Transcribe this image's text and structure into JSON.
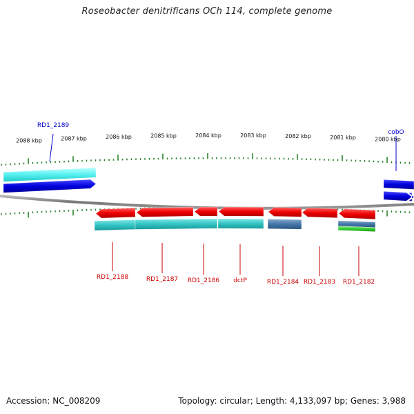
{
  "title": "Roseobacter denitrificans OCh 114, complete genome",
  "footer": {
    "accession": "Accession: NC_008209",
    "topology": "Topology: circular; Length: 4,133,097 bp; Genes: 3,988"
  },
  "colors": {
    "forward_gene": "#0000dd",
    "reverse_gene": "#ee0000",
    "forward_label": "#0000cc",
    "reverse_label": "#cc0000",
    "cds_cyan": "#33cccc",
    "cds_light_cyan": "#66ffff",
    "cds_steel": "#4477aa",
    "cds_green": "#33cc33",
    "tick": "#1a7a1a",
    "backbone": "#777777"
  },
  "scale_labels": [
    "2088 kbp",
    "2087 kbp",
    "2086 kbp",
    "2085 kbp",
    "2084 kbp",
    "2083 kbp",
    "2082 kbp",
    "2081 kbp",
    "2080 kbp"
  ],
  "genes_forward": [
    {
      "label": "RD1_2189"
    },
    {
      "label": "cobO"
    }
  ],
  "genes_reverse": [
    {
      "label": "RD1_2188"
    },
    {
      "label": "RD1_2187"
    },
    {
      "label": "RD1_2186"
    },
    {
      "label": "dctP"
    },
    {
      "label": "RD1_2184"
    },
    {
      "label": "RD1_2183"
    },
    {
      "label": "RD1_2182"
    }
  ]
}
